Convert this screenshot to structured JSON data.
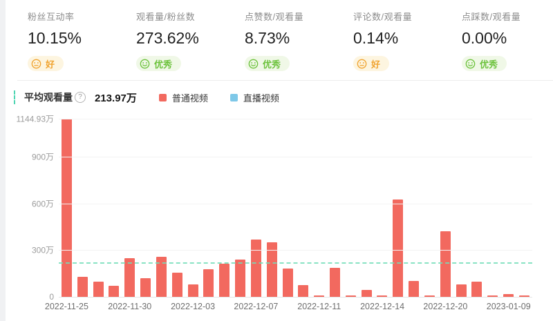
{
  "metrics": {
    "cards": [
      {
        "label": "粉丝互动率",
        "value": "10.15%",
        "rating": "好",
        "level": "good"
      },
      {
        "label": "观看量/粉丝数",
        "value": "273.62%",
        "rating": "优秀",
        "level": "excellent"
      },
      {
        "label": "点赞数/观看量",
        "value": "8.73%",
        "rating": "优秀",
        "level": "excellent"
      },
      {
        "label": "评论数/观看量",
        "value": "0.14%",
        "rating": "好",
        "level": "good"
      },
      {
        "label": "点踩数/观看量",
        "value": "0.00%",
        "rating": "优秀",
        "level": "excellent"
      }
    ]
  },
  "chart_header": {
    "title": "平均观看量",
    "help_glyph": "?",
    "average_value": "213.97万"
  },
  "colors": {
    "good": {
      "fg": "#F0A32F",
      "bg": "#FDF5E0"
    },
    "excellent": {
      "fg": "#6CC23C",
      "bg": "#F0F8E7"
    },
    "normal_video": "#F2695F",
    "live_video": "#7EC8E8",
    "average_line": "#74DDB9"
  },
  "chart_data": {
    "type": "bar",
    "title": "平均观看量",
    "unit": "万",
    "y_max": 1144.93,
    "y_ticks": [
      "1144.93万",
      "900万",
      "600万",
      "300万",
      "0"
    ],
    "average_line": {
      "value": 213.97,
      "label": "213.97万"
    },
    "legend": [
      {
        "name": "普通视频",
        "color": "#F2695F"
      },
      {
        "name": "直播视频",
        "color": "#7EC8E8"
      }
    ],
    "series": [
      {
        "name": "普通视频",
        "color": "#F2695F",
        "values": [
          1144.93,
          130,
          98,
          72,
          250,
          122,
          258,
          156,
          82,
          177,
          214,
          240,
          368,
          350,
          183,
          76,
          10,
          186,
          5,
          45,
          6,
          628,
          100,
          6,
          420,
          79,
          96,
          4,
          17,
          7
        ]
      }
    ],
    "x_tick_labels": [
      {
        "index": 0,
        "label": "2022-11-25"
      },
      {
        "index": 4,
        "label": "2022-11-30"
      },
      {
        "index": 8,
        "label": "2022-12-03"
      },
      {
        "index": 12,
        "label": "2022-12-07"
      },
      {
        "index": 16,
        "label": "2022-12-11"
      },
      {
        "index": 20,
        "label": "2022-12-14"
      },
      {
        "index": 24,
        "label": "2022-12-20"
      },
      {
        "index": 28,
        "label": "2023-01-09"
      }
    ],
    "grid": true,
    "legend_position": "top"
  }
}
